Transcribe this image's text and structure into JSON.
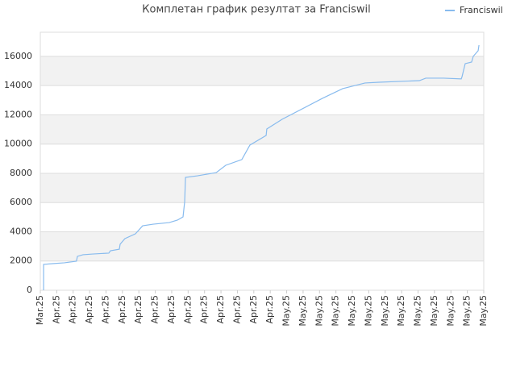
{
  "chart_data": {
    "type": "line",
    "title": "Комплетан график резултат за Franciswil",
    "series": [
      {
        "name": "Franciswil",
        "color": "#88bbee",
        "x": [
          0.2,
          0.2,
          0.74,
          1.47,
          2.2,
          2.26,
          2.6,
          3.19,
          4.17,
          4.27,
          4.81,
          4.86,
          5.15,
          5.79,
          6.23,
          6.87,
          7.85,
          8.35,
          8.69,
          8.79,
          8.84,
          9.57,
          10.71,
          11.29,
          12.27,
          12.76,
          13.75,
          13.79,
          14.73,
          17.18,
          18.41,
          19.77,
          20.62,
          23.08,
          23.47,
          24.55,
          25.63,
          25.68,
          25.87,
          26.26,
          26.36,
          26.66,
          26.71
        ],
        "values": [
          0,
          1770,
          1820,
          1880,
          1990,
          2320,
          2430,
          2480,
          2540,
          2700,
          2810,
          3150,
          3530,
          3860,
          4410,
          4520,
          4630,
          4800,
          5020,
          6070,
          7720,
          7830,
          8050,
          8550,
          8940,
          9930,
          10590,
          11030,
          11700,
          13130,
          13790,
          14180,
          14230,
          14340,
          14510,
          14510,
          14460,
          14620,
          15500,
          15610,
          16000,
          16390,
          16770
        ]
      }
    ],
    "xlim": [
      0,
      27
    ],
    "xticks": [
      {
        "value": 0,
        "label": "Mar.25"
      },
      {
        "value": 1,
        "label": "Apr.25"
      },
      {
        "value": 2,
        "label": "Apr.25"
      },
      {
        "value": 3,
        "label": "Apr.25"
      },
      {
        "value": 4,
        "label": "Apr.25"
      },
      {
        "value": 5,
        "label": "Apr.25"
      },
      {
        "value": 6,
        "label": "Apr.25"
      },
      {
        "value": 7,
        "label": "Apr.25"
      },
      {
        "value": 8,
        "label": "Apr.25"
      },
      {
        "value": 9,
        "label": "Apr.25"
      },
      {
        "value": 10,
        "label": "Apr.25"
      },
      {
        "value": 11,
        "label": "Apr.25"
      },
      {
        "value": 12,
        "label": "Apr.25"
      },
      {
        "value": 13,
        "label": "Apr.25"
      },
      {
        "value": 14,
        "label": "Apr.25"
      },
      {
        "value": 15,
        "label": "May.25"
      },
      {
        "value": 16,
        "label": "May.25"
      },
      {
        "value": 17,
        "label": "May.25"
      },
      {
        "value": 18,
        "label": "May.25"
      },
      {
        "value": 19,
        "label": "May.25"
      },
      {
        "value": 20,
        "label": "May.25"
      },
      {
        "value": 21,
        "label": "May.25"
      },
      {
        "value": 22,
        "label": "May.25"
      },
      {
        "value": 23,
        "label": "May.25"
      },
      {
        "value": 24,
        "label": "May.25"
      },
      {
        "value": 25,
        "label": "May.25"
      },
      {
        "value": 26,
        "label": "May.25"
      },
      {
        "value": 27,
        "label": "May.25"
      }
    ],
    "ylim": [
      0,
      17650
    ],
    "yticks": [
      0,
      2000,
      4000,
      6000,
      8000,
      10000,
      12000,
      14000,
      16000
    ],
    "grid": true,
    "legend": "top-right"
  }
}
